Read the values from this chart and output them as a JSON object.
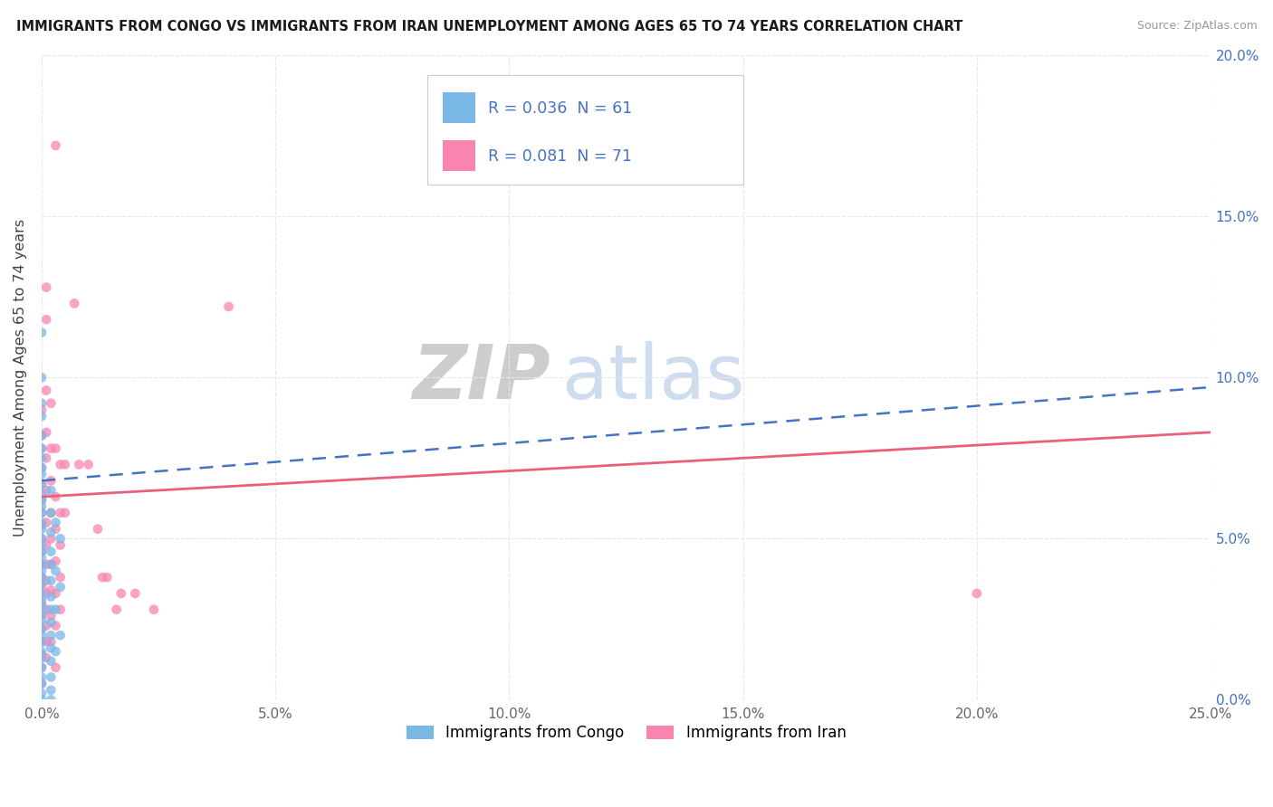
{
  "title": "IMMIGRANTS FROM CONGO VS IMMIGRANTS FROM IRAN UNEMPLOYMENT AMONG AGES 65 TO 74 YEARS CORRELATION CHART",
  "source": "Source: ZipAtlas.com",
  "ylabel": "Unemployment Among Ages 65 to 74 years",
  "xlim": [
    0.0,
    0.25
  ],
  "ylim": [
    0.0,
    0.2
  ],
  "xticks": [
    0.0,
    0.05,
    0.1,
    0.15,
    0.2,
    0.25
  ],
  "yticks": [
    0.0,
    0.05,
    0.1,
    0.15,
    0.2
  ],
  "xtick_labels": [
    "0.0%",
    "5.0%",
    "10.0%",
    "15.0%",
    "20.0%",
    "25.0%"
  ],
  "ytick_labels_right": [
    "0.0%",
    "5.0%",
    "10.0%",
    "15.0%",
    "20.0%"
  ],
  "congo_color": "#7ab8e8",
  "iran_color": "#f984b0",
  "congo_line_color": "#4472c4",
  "iran_line_color": "#e8607a",
  "congo_R": 0.036,
  "congo_N": 61,
  "iran_R": 0.081,
  "iran_N": 71,
  "background_color": "#ffffff",
  "grid_color": "#e8e8e8",
  "congo_scatter": [
    [
      0.0,
      0.114
    ],
    [
      0.0,
      0.1
    ],
    [
      0.0,
      0.092
    ],
    [
      0.0,
      0.088
    ],
    [
      0.0,
      0.082
    ],
    [
      0.0,
      0.078
    ],
    [
      0.0,
      0.075
    ],
    [
      0.0,
      0.072
    ],
    [
      0.0,
      0.07
    ],
    [
      0.0,
      0.067
    ],
    [
      0.0,
      0.064
    ],
    [
      0.0,
      0.062
    ],
    [
      0.0,
      0.06
    ],
    [
      0.0,
      0.058
    ],
    [
      0.0,
      0.055
    ],
    [
      0.0,
      0.053
    ],
    [
      0.0,
      0.05
    ],
    [
      0.0,
      0.048
    ],
    [
      0.0,
      0.046
    ],
    [
      0.0,
      0.044
    ],
    [
      0.0,
      0.042
    ],
    [
      0.0,
      0.04
    ],
    [
      0.0,
      0.038
    ],
    [
      0.0,
      0.036
    ],
    [
      0.0,
      0.033
    ],
    [
      0.0,
      0.031
    ],
    [
      0.0,
      0.029
    ],
    [
      0.0,
      0.027
    ],
    [
      0.0,
      0.025
    ],
    [
      0.0,
      0.022
    ],
    [
      0.0,
      0.02
    ],
    [
      0.0,
      0.018
    ],
    [
      0.0,
      0.015
    ],
    [
      0.0,
      0.013
    ],
    [
      0.0,
      0.01
    ],
    [
      0.0,
      0.007
    ],
    [
      0.0,
      0.005
    ],
    [
      0.0,
      0.002
    ],
    [
      0.0,
      0.0
    ],
    [
      0.002,
      0.065
    ],
    [
      0.002,
      0.058
    ],
    [
      0.002,
      0.052
    ],
    [
      0.002,
      0.046
    ],
    [
      0.002,
      0.042
    ],
    [
      0.002,
      0.037
    ],
    [
      0.002,
      0.032
    ],
    [
      0.002,
      0.028
    ],
    [
      0.002,
      0.024
    ],
    [
      0.002,
      0.02
    ],
    [
      0.002,
      0.016
    ],
    [
      0.002,
      0.012
    ],
    [
      0.002,
      0.007
    ],
    [
      0.002,
      0.003
    ],
    [
      0.002,
      0.0
    ],
    [
      0.003,
      0.055
    ],
    [
      0.003,
      0.04
    ],
    [
      0.003,
      0.028
    ],
    [
      0.003,
      0.015
    ],
    [
      0.004,
      0.05
    ],
    [
      0.004,
      0.035
    ],
    [
      0.004,
      0.02
    ]
  ],
  "iran_scatter": [
    [
      0.0,
      0.09
    ],
    [
      0.0,
      0.082
    ],
    [
      0.0,
      0.078
    ],
    [
      0.0,
      0.072
    ],
    [
      0.0,
      0.067
    ],
    [
      0.0,
      0.062
    ],
    [
      0.0,
      0.058
    ],
    [
      0.0,
      0.054
    ],
    [
      0.0,
      0.05
    ],
    [
      0.0,
      0.046
    ],
    [
      0.0,
      0.042
    ],
    [
      0.0,
      0.038
    ],
    [
      0.0,
      0.035
    ],
    [
      0.0,
      0.03
    ],
    [
      0.0,
      0.026
    ],
    [
      0.0,
      0.022
    ],
    [
      0.0,
      0.018
    ],
    [
      0.0,
      0.014
    ],
    [
      0.0,
      0.01
    ],
    [
      0.0,
      0.005
    ],
    [
      0.001,
      0.128
    ],
    [
      0.001,
      0.118
    ],
    [
      0.001,
      0.096
    ],
    [
      0.001,
      0.083
    ],
    [
      0.001,
      0.075
    ],
    [
      0.001,
      0.065
    ],
    [
      0.001,
      0.055
    ],
    [
      0.001,
      0.048
    ],
    [
      0.001,
      0.042
    ],
    [
      0.001,
      0.037
    ],
    [
      0.001,
      0.033
    ],
    [
      0.001,
      0.028
    ],
    [
      0.001,
      0.023
    ],
    [
      0.001,
      0.018
    ],
    [
      0.001,
      0.013
    ],
    [
      0.002,
      0.092
    ],
    [
      0.002,
      0.078
    ],
    [
      0.002,
      0.068
    ],
    [
      0.002,
      0.058
    ],
    [
      0.002,
      0.05
    ],
    [
      0.002,
      0.042
    ],
    [
      0.002,
      0.034
    ],
    [
      0.002,
      0.026
    ],
    [
      0.002,
      0.018
    ],
    [
      0.003,
      0.172
    ],
    [
      0.003,
      0.078
    ],
    [
      0.003,
      0.063
    ],
    [
      0.003,
      0.053
    ],
    [
      0.003,
      0.043
    ],
    [
      0.003,
      0.033
    ],
    [
      0.003,
      0.023
    ],
    [
      0.003,
      0.01
    ],
    [
      0.004,
      0.073
    ],
    [
      0.004,
      0.058
    ],
    [
      0.004,
      0.048
    ],
    [
      0.004,
      0.038
    ],
    [
      0.004,
      0.028
    ],
    [
      0.005,
      0.073
    ],
    [
      0.005,
      0.058
    ],
    [
      0.007,
      0.123
    ],
    [
      0.008,
      0.073
    ],
    [
      0.01,
      0.073
    ],
    [
      0.012,
      0.053
    ],
    [
      0.013,
      0.038
    ],
    [
      0.014,
      0.038
    ],
    [
      0.016,
      0.028
    ],
    [
      0.017,
      0.033
    ],
    [
      0.02,
      0.033
    ],
    [
      0.024,
      0.028
    ],
    [
      0.04,
      0.122
    ],
    [
      0.2,
      0.033
    ]
  ],
  "congo_trend": [
    0.0,
    0.25,
    0.068,
    0.097
  ],
  "iran_trend": [
    0.0,
    0.25,
    0.063,
    0.083
  ]
}
